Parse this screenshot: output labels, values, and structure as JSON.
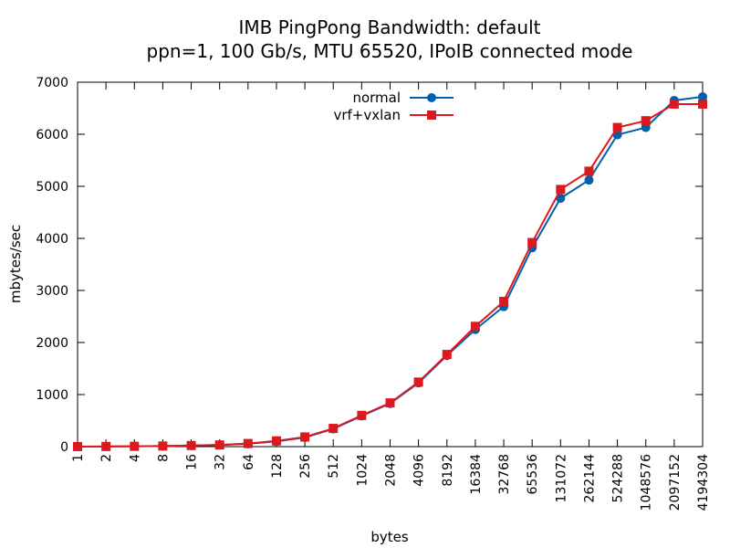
{
  "chart_data": {
    "type": "line",
    "title": "IMB PingPong Bandwidth: default",
    "subtitle": "ppn=1, 100 Gb/s, MTU 65520, IPoIB connected mode",
    "xlabel": "bytes",
    "ylabel": "mbytes/sec",
    "ylim": [
      0,
      7000
    ],
    "yticks": [
      0,
      1000,
      2000,
      3000,
      4000,
      5000,
      6000,
      7000
    ],
    "grid": false,
    "legend_position": "top-center",
    "categories": [
      "1",
      "2",
      "4",
      "8",
      "16",
      "32",
      "64",
      "128",
      "256",
      "512",
      "1024",
      "2048",
      "4096",
      "8192",
      "16384",
      "32768",
      "65536",
      "131072",
      "262144",
      "524288",
      "1048576",
      "2097152",
      "4194304"
    ],
    "series": [
      {
        "name": "normal",
        "color": "#0060ad",
        "marker": "circle",
        "values": [
          1,
          3,
          6,
          12,
          22,
          30,
          55,
          100,
          175,
          340,
          590,
          830,
          1225,
          1750,
          2250,
          2690,
          3820,
          4770,
          5120,
          5990,
          6130,
          6650,
          6720
        ]
      },
      {
        "name": "vrf+vxlan",
        "color": "#dd181f",
        "marker": "square",
        "values": [
          1,
          3,
          6,
          12,
          22,
          32,
          60,
          110,
          185,
          350,
          600,
          840,
          1240,
          1770,
          2310,
          2790,
          3920,
          4940,
          5290,
          6130,
          6260,
          6580,
          6580
        ]
      }
    ]
  }
}
